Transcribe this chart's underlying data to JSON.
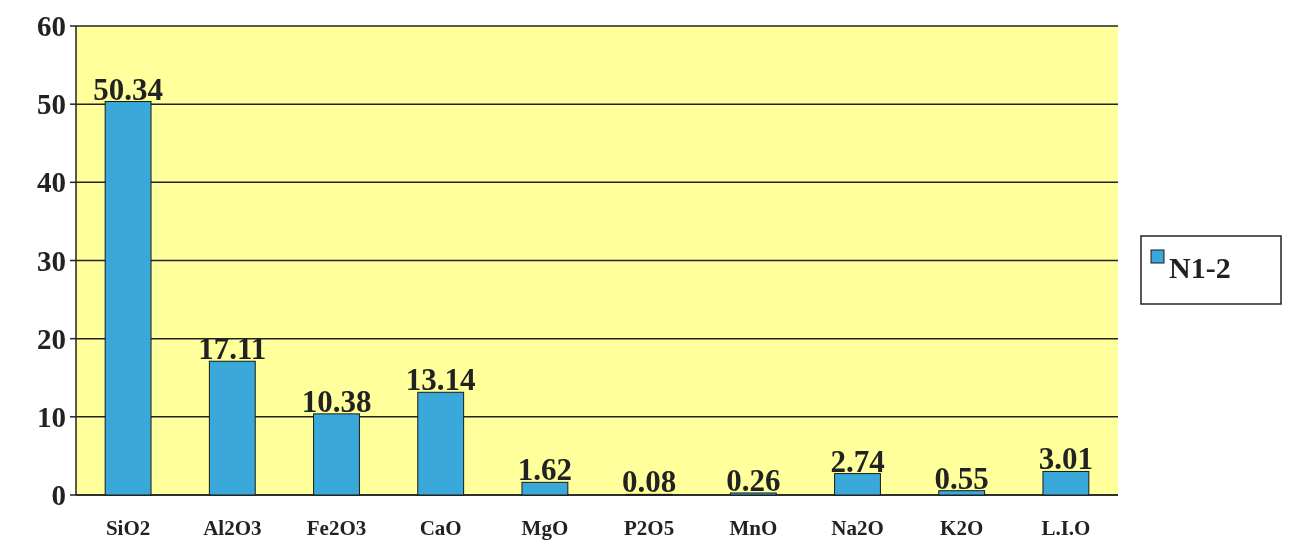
{
  "chart_data": {
    "type": "bar",
    "categories": [
      "SiO2",
      "Al2O3",
      "Fe2O3",
      "CaO",
      "MgO",
      "P2O5",
      "MnO",
      "Na2O",
      "K2O",
      "L.I.O"
    ],
    "series": [
      {
        "name": "N1-2",
        "color": "#3aa8d8",
        "values": [
          50.34,
          17.11,
          10.38,
          13.14,
          1.62,
          0.08,
          0.26,
          2.74,
          0.55,
          3.01
        ]
      }
    ],
    "ylim": [
      0,
      60
    ],
    "yticks": [
      0,
      10,
      20,
      30,
      40,
      50,
      60
    ],
    "grid": "y",
    "legend": "right",
    "data_labels": true
  }
}
